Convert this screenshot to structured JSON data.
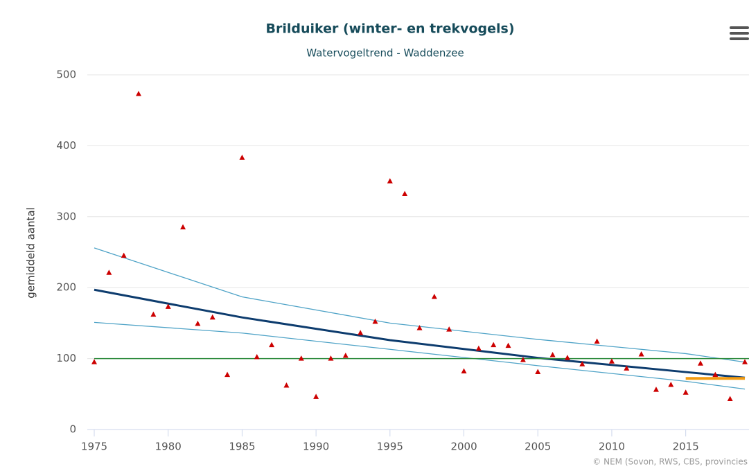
{
  "chart_data": {
    "type": "scatter",
    "title": "Brilduiker (winter- en trekvogels)",
    "subtitle": "Watervogeltrend - Waddenzee",
    "y_label": "gemiddeld aantal",
    "credits": "© NEM (Sovon, RWS, CBS, provincies",
    "xlim": [
      1975,
      2019.28
    ],
    "xticks": [
      1975,
      1980,
      1985,
      1990,
      1995,
      2000,
      2005,
      2010,
      2015
    ],
    "ylim": [
      0,
      500
    ],
    "yticks": [
      0,
      100,
      200,
      300,
      400,
      500
    ],
    "grid": true,
    "series": [
      {
        "type": "scatter",
        "color": "#cc0000",
        "x": [
          1975,
          1976,
          1977,
          1978,
          1979,
          1980,
          1981,
          1982,
          1983,
          1984,
          1985,
          1986,
          1987,
          1988,
          1989,
          1990,
          1991,
          1992,
          1993,
          1994,
          1995,
          1996,
          1997,
          1998,
          1999,
          2000,
          2001,
          2002,
          2003,
          2004,
          2005,
          2006,
          2007,
          2008,
          2009,
          2010,
          2011,
          2012,
          2013,
          2014,
          2015,
          2016,
          2017,
          2018,
          2019
        ],
        "values": [
          95,
          221,
          245,
          473,
          162,
          173,
          285,
          149,
          158,
          77,
          383,
          102,
          119,
          62,
          100,
          46,
          100,
          104,
          136,
          152,
          350,
          332,
          143,
          187,
          141,
          82,
          114,
          119,
          118,
          98,
          81,
          105,
          101,
          92,
          124,
          96,
          86,
          106,
          56,
          63,
          52,
          93,
          77,
          43,
          95
        ]
      },
      {
        "type": "line",
        "color": "#4fa3c7",
        "width": 1.3,
        "x": [
          1975,
          1985,
          1995,
          2005,
          2015,
          2019
        ],
        "values": [
          256,
          187,
          150,
          127,
          107,
          95
        ]
      },
      {
        "type": "line",
        "color": "#4fa3c7",
        "width": 1.3,
        "x": [
          1975,
          1985,
          1995,
          2005,
          2015,
          2019
        ],
        "values": [
          151,
          136,
          113,
          90,
          68,
          57
        ]
      },
      {
        "type": "line",
        "color": "#0d3c6e",
        "width": 3,
        "x": [
          1975,
          1985,
          1995,
          2005,
          2015,
          2019
        ],
        "values": [
          197,
          158,
          126,
          101,
          81,
          73
        ]
      },
      {
        "type": "line",
        "color": "#2e8b3e",
        "width": 1.5,
        "x": [
          1975,
          2019.28
        ],
        "values": [
          100,
          100
        ]
      },
      {
        "type": "line",
        "color": "#f39c12",
        "width": 4,
        "x": [
          2015,
          2019
        ],
        "values": [
          72,
          72
        ]
      }
    ]
  }
}
